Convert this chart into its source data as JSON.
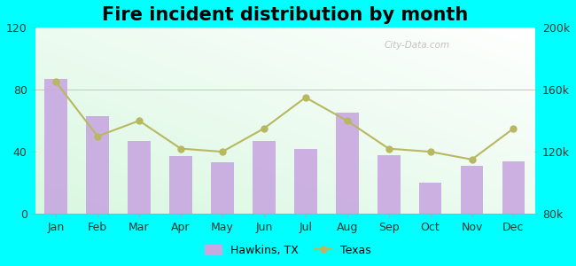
{
  "title": "Fire incident distribution by month",
  "months": [
    "Jan",
    "Feb",
    "Mar",
    "Apr",
    "May",
    "Jun",
    "Jul",
    "Aug",
    "Sep",
    "Oct",
    "Nov",
    "Dec"
  ],
  "hawkins_values": [
    87,
    63,
    47,
    37,
    33,
    47,
    42,
    65,
    38,
    20,
    31,
    34
  ],
  "texas_values": [
    165000,
    130000,
    140000,
    122000,
    120000,
    135000,
    155000,
    140000,
    122000,
    120000,
    115000,
    135000
  ],
  "bar_color": "#c8a8e0",
  "line_color": "#b8b860",
  "line_marker": "o",
  "outer_bg": "#00ffff",
  "ylim_left": [
    0,
    120
  ],
  "ylim_right": [
    80000,
    200000
  ],
  "left_yticks": [
    0,
    40,
    80,
    120
  ],
  "right_yticks": [
    80000,
    120000,
    160000,
    200000
  ],
  "watermark": "City-Data.com",
  "legend_hawkins": "Hawkins, TX",
  "legend_texas": "Texas",
  "title_fontsize": 15
}
